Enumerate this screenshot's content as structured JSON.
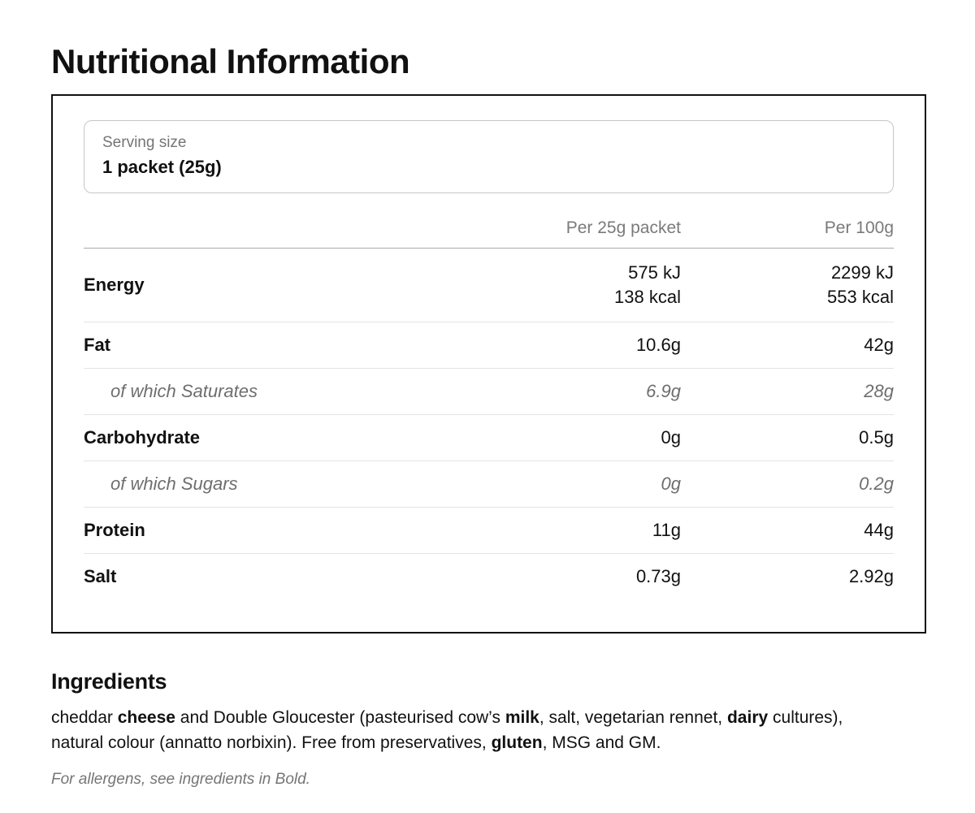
{
  "page": {
    "title": "Nutritional Information"
  },
  "serving": {
    "label": "Serving size",
    "value": "1 packet (25g)"
  },
  "table": {
    "columns": {
      "per_packet": "Per 25g packet",
      "per_100g": "Per 100g"
    },
    "rows": [
      {
        "label": "Energy",
        "per_packet_line1": "575 kJ",
        "per_packet_line2": "138 kcal",
        "per_100g_line1": "2299 kJ",
        "per_100g_line2": "553 kcal"
      },
      {
        "label": "Fat",
        "per_packet": "10.6g",
        "per_100g": "42g"
      },
      {
        "label": "of which Saturates",
        "per_packet": "6.9g",
        "per_100g": "28g"
      },
      {
        "label": "Carbohydrate",
        "per_packet": "0g",
        "per_100g": "0.5g"
      },
      {
        "label": "of which Sugars",
        "per_packet": "0g",
        "per_100g": "0.2g"
      },
      {
        "label": "Protein",
        "per_packet": "11g",
        "per_100g": "44g"
      },
      {
        "label": "Salt",
        "per_packet": "0.73g",
        "per_100g": "2.92g"
      }
    ]
  },
  "ingredients": {
    "heading": "Ingredients",
    "segments": [
      {
        "text": "cheddar "
      },
      {
        "text": "cheese"
      },
      {
        "text": " and Double Gloucester (pasteurised cow’s "
      },
      {
        "text": "milk"
      },
      {
        "text": ", salt, vegetarian rennet, "
      },
      {
        "text": "dairy"
      },
      {
        "text": " cultures), natural colour (annatto norbixin). Free from preservatives, "
      },
      {
        "text": "gluten"
      },
      {
        "text": ", MSG and GM."
      }
    ],
    "allergen_note": "For allergens, see ingredients in Bold."
  },
  "colors": {
    "text": "#111111",
    "muted_gray": "#757575",
    "sub_row_gray": "#6e6e6e",
    "row_divider": "#e4e4e4",
    "header_divider": "#a9a9a9",
    "box_border": "#111111",
    "serving_box_border": "#c7c7c7"
  }
}
